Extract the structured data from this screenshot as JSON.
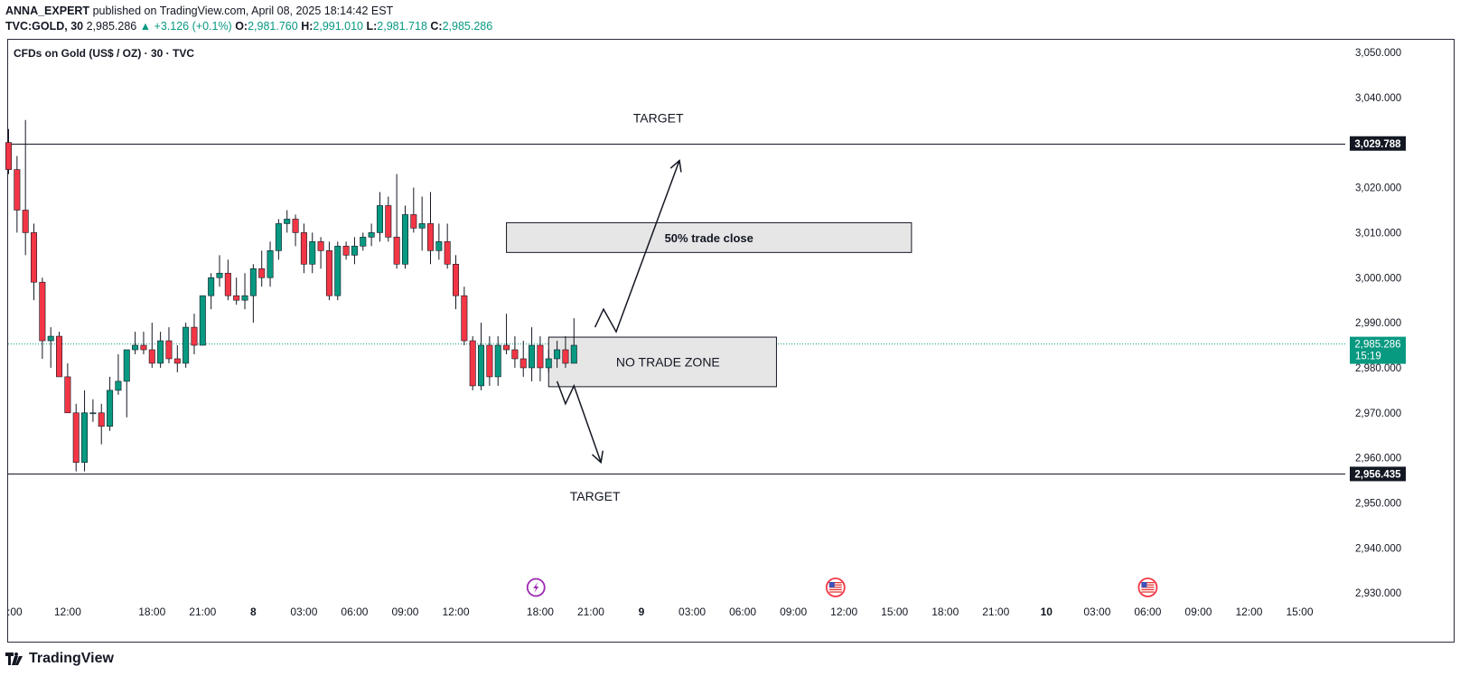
{
  "header": {
    "publisher": "ANNA_EXPERT",
    "published_text": "published on TradingView.com, April 08, 2025 18:14:42 EST",
    "symbol": "TVC:GOLD, 30",
    "last": "2,985.286",
    "change": "▲ +3.126 (+0.1%)",
    "o_label": "O:",
    "o_val": "2,981.760",
    "h_label": "H:",
    "h_val": "2,991.010",
    "l_label": "L:",
    "l_val": "2,981.718",
    "c_label": "C:",
    "c_val": "2,985.286"
  },
  "legend_title": "CFDs on Gold (US$ / OZ) · 30 · TVC",
  "brand": "TradingView",
  "colors": {
    "up": "#089981",
    "down": "#f23645",
    "zone": "#e6e6e6",
    "badge": "#131722"
  },
  "chart_data": {
    "type": "candlestick",
    "title": "CFDs on Gold (US$ / OZ) · 30 · TVC",
    "y_axis": {
      "min": 2925,
      "max": 3052,
      "ticks": [
        3050,
        3040,
        3030,
        3020,
        3010,
        3000,
        2990,
        2980,
        2970,
        2960,
        2950,
        2940,
        2930
      ],
      "tick_labels": [
        "3,050.000",
        "3,040.000",
        "3,030.000",
        "3,020.000",
        "3,010.000",
        "3,000.000",
        "2,990.000",
        "2,980.000",
        "2,970.000",
        "2,960.000",
        "2,950.000",
        "2,940.000",
        "2,930.000"
      ]
    },
    "x_axis": {
      "bar_min": 0,
      "bar_max": 162,
      "tick_labels": [
        ":00",
        "12:00",
        "18:00",
        "21:00",
        "8",
        "03:00",
        "06:00",
        "09:00",
        "12:00",
        "18:00",
        "21:00",
        "9",
        "03:00",
        "06:00",
        "09:00",
        "12:00",
        "15:00",
        "18:00",
        "21:00",
        "10",
        "03:00",
        "06:00",
        "09:00",
        "12:00",
        "15:00"
      ],
      "tick_bars": [
        0,
        7,
        17,
        23,
        29,
        35,
        41,
        47,
        53,
        63,
        69,
        75,
        81,
        87,
        93,
        99,
        105,
        111,
        117,
        123,
        129,
        135,
        141,
        147,
        153
      ],
      "bold_ticks": [
        "8",
        "9",
        "10"
      ]
    },
    "candles": [
      [
        3030,
        3033,
        3023,
        3024
      ],
      [
        3024,
        3027,
        3010,
        3015
      ],
      [
        3015,
        3035,
        3005,
        3010
      ],
      [
        3010,
        3012,
        2995,
        2999
      ],
      [
        2999,
        3000,
        2982,
        2986
      ],
      [
        2986,
        2989,
        2980,
        2987
      ],
      [
        2987,
        2988,
        2978,
        2978
      ],
      [
        2978,
        2981,
        2970,
        2970
      ],
      [
        2970,
        2972,
        2957,
        2959
      ],
      [
        2959,
        2975,
        2957,
        2970
      ],
      [
        2970,
        2973,
        2968,
        2970
      ],
      [
        2970,
        2972,
        2963,
        2967
      ],
      [
        2967,
        2978,
        2966,
        2975
      ],
      [
        2975,
        2983,
        2974,
        2977
      ],
      [
        2977,
        2983,
        2969,
        2984
      ],
      [
        2984,
        2988,
        2983,
        2985
      ],
      [
        2985,
        2988,
        2983,
        2984
      ],
      [
        2984,
        2990,
        2980,
        2981
      ],
      [
        2981,
        2988,
        2980,
        2986
      ],
      [
        2986,
        2989,
        2981,
        2982
      ],
      [
        2982,
        2985,
        2979,
        2981
      ],
      [
        2981,
        2990,
        2980,
        2989
      ],
      [
        2989,
        2992,
        2983,
        2985
      ],
      [
        2985,
        2996,
        2985,
        2996
      ],
      [
        2996,
        3001,
        2993,
        3000
      ],
      [
        3000,
        3005,
        2998,
        3001
      ],
      [
        3001,
        3004,
        2995,
        2996
      ],
      [
        2996,
        3000,
        2994,
        2995
      ],
      [
        2995,
        3001,
        2993,
        2996
      ],
      [
        2996,
        3003,
        2990,
        3002
      ],
      [
        3002,
        3006,
        2998,
        3000
      ],
      [
        3000,
        3008,
        2998,
        3006
      ],
      [
        3006,
        3013,
        3004,
        3012
      ],
      [
        3012,
        3015,
        3010,
        3013
      ],
      [
        3013,
        3014,
        3007,
        3010
      ],
      [
        3010,
        3012,
        3001,
        3003
      ],
      [
        3003,
        3010,
        3001,
        3008
      ],
      [
        3008,
        3009,
        3002,
        3006
      ],
      [
        3006,
        3008,
        2995,
        2996
      ],
      [
        2996,
        3008,
        2995,
        3007
      ],
      [
        3007,
        3008,
        3004,
        3005
      ],
      [
        3005,
        3009,
        3003,
        3007
      ],
      [
        3007,
        3010,
        3006,
        3009
      ],
      [
        3009,
        3012,
        3007,
        3010
      ],
      [
        3010,
        3019,
        3008,
        3016
      ],
      [
        3016,
        3018,
        3008,
        3009
      ],
      [
        3009,
        3023,
        3002,
        3003
      ],
      [
        3003,
        3016,
        3002,
        3014
      ],
      [
        3014,
        3020,
        3010,
        3011
      ],
      [
        3011,
        3018,
        3006,
        3012
      ],
      [
        3012,
        3019,
        3003,
        3006
      ],
      [
        3006,
        3012,
        3004,
        3008
      ],
      [
        3008,
        3012,
        3002,
        3003
      ],
      [
        3003,
        3005,
        2993,
        2996
      ],
      [
        2996,
        2998,
        2985,
        2986
      ],
      [
        2986,
        2987,
        2975,
        2976
      ],
      [
        2976,
        2990,
        2975,
        2985
      ],
      [
        2985,
        2987,
        2976,
        2978
      ],
      [
        2978,
        2987,
        2976,
        2985
      ],
      [
        2985,
        2992,
        2983,
        2984
      ],
      [
        2984,
        2987,
        2980,
        2982
      ],
      [
        2982,
        2986,
        2978,
        2980
      ],
      [
        2980,
        2989,
        2977,
        2985
      ],
      [
        2985,
        2987,
        2977,
        2980
      ],
      [
        2980,
        2984,
        2979,
        2982
      ],
      [
        2982,
        2986,
        2980,
        2984
      ],
      [
        2984,
        2987,
        2980,
        2981
      ],
      [
        2981,
        2991,
        2981,
        2985
      ]
    ],
    "horizontal_lines": [
      {
        "price": 3029.788,
        "label": "3,029.788"
      },
      {
        "price": 2956.435,
        "label": "2,956.435"
      }
    ],
    "last_price": {
      "price": 2985.286,
      "label": "2,985.286",
      "countdown": "15:19"
    },
    "zones": [
      {
        "label": "50% trade close",
        "top": 3012.2,
        "bottom": 3005.6,
        "from_bar": 59,
        "to_bar": 107
      },
      {
        "label": "NO TRADE ZONE",
        "top": 2986.8,
        "bottom": 2975.8,
        "from_bar": 64,
        "to_bar": 91
      }
    ],
    "annotations": [
      {
        "text": "TARGET",
        "price": 3035.5,
        "bar": 77
      },
      {
        "text": "TARGET",
        "price": 2951.5,
        "bar": 69.5
      }
    ],
    "paths": [
      [
        [
          69.5,
          2989
        ],
        [
          70.5,
          2993
        ],
        [
          72,
          2988
        ],
        [
          79.5,
          3026
        ]
      ],
      [
        [
          65,
          2977
        ],
        [
          66,
          2972
        ],
        [
          67,
          2976
        ],
        [
          70.2,
          2959
        ]
      ]
    ],
    "event_markers": [
      {
        "icon": "lightning-icon",
        "bar": 62.5
      },
      {
        "icon": "us-flag-icon",
        "bar": 98
      },
      {
        "icon": "us-flag-icon",
        "bar": 135
      }
    ]
  }
}
